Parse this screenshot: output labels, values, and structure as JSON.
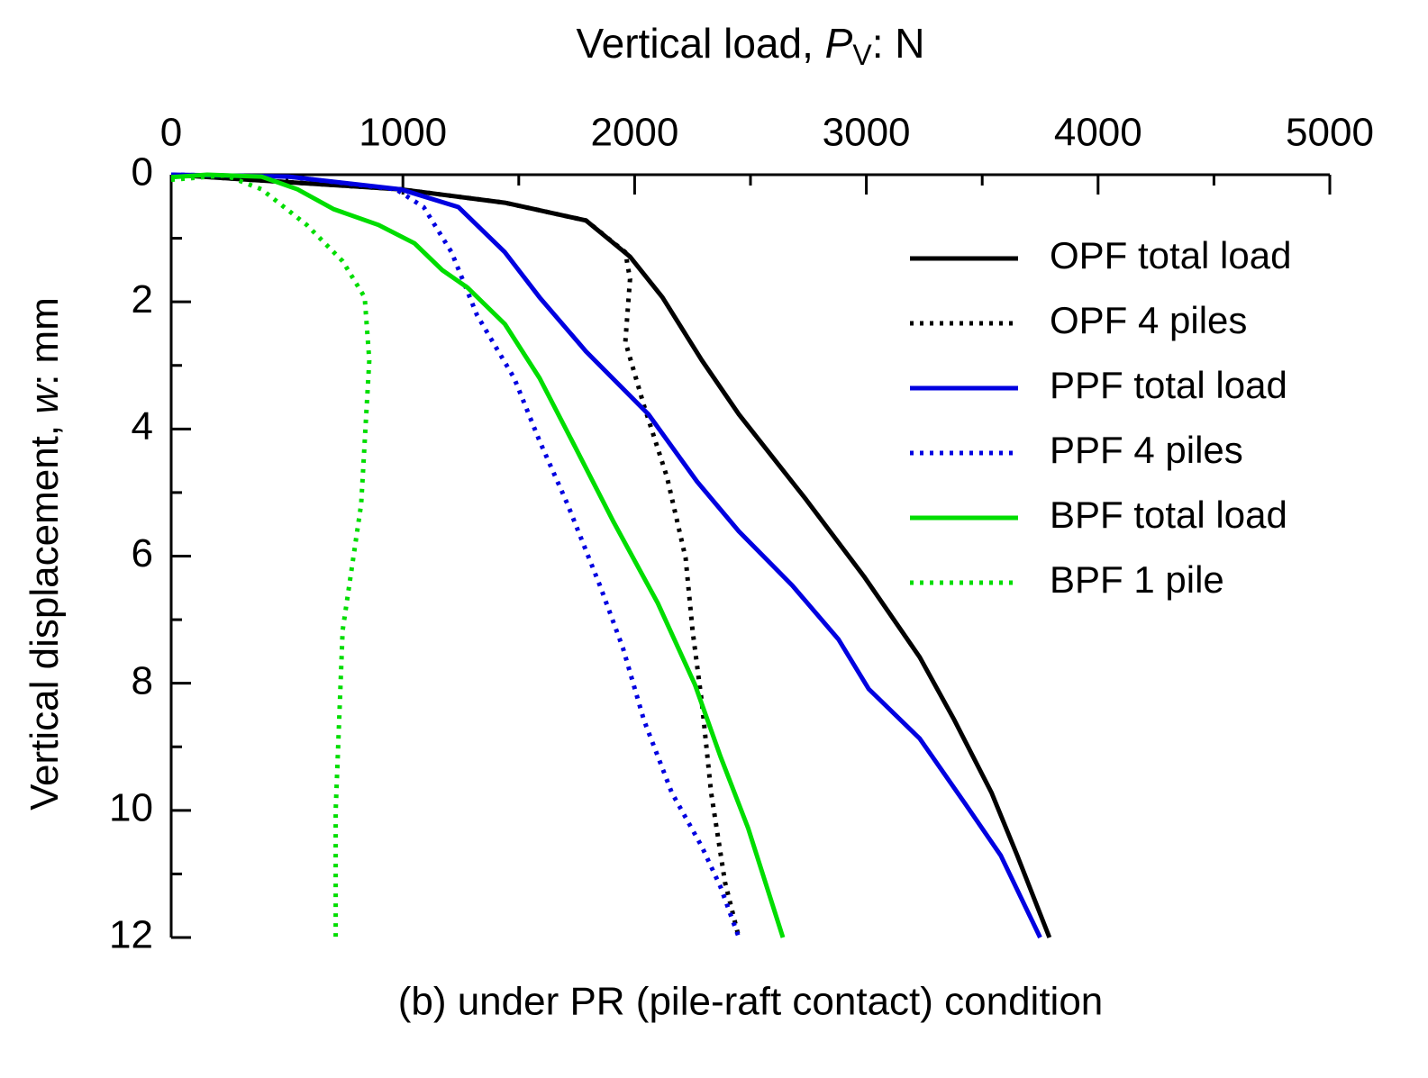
{
  "chart_data": {
    "type": "line",
    "x_label": [
      "Vertical load, ",
      "P",
      "V",
      ": N"
    ],
    "y_label": [
      "Vertical displacement, ",
      "w",
      ": mm"
    ],
    "caption": "(b) under PR (pile-raft contact) condition",
    "x_axis_position": "top",
    "xlim": [
      0,
      5000
    ],
    "xticks": [
      0,
      1000,
      2000,
      3000,
      4000,
      5000
    ],
    "xminorticks": [
      500,
      1500,
      2500,
      3500,
      4500
    ],
    "ylim": [
      12,
      0
    ],
    "yticks": [
      0,
      2,
      4,
      6,
      8,
      10,
      12
    ],
    "yminorticks": [
      1,
      3,
      5,
      7,
      9,
      11
    ],
    "legend": "top-right",
    "series": [
      {
        "name": "OPF total load",
        "color": "#000000",
        "style": "solid",
        "x": [
          0,
          990,
          1440,
          1790,
          1980,
          2120,
          2290,
          2450,
          2740,
          2990,
          3230,
          3380,
          3540,
          3650,
          3790
        ],
        "values": [
          0,
          0.23,
          0.44,
          0.72,
          1.29,
          1.93,
          2.92,
          3.77,
          5.11,
          6.32,
          7.59,
          8.58,
          9.72,
          10.7,
          12
        ]
      },
      {
        "name": "OPF 4 piles",
        "color": "#000000",
        "style": "dotted",
        "x": [
          0,
          990,
          1440,
          1790,
          1960,
          1980,
          1960,
          2040,
          2140,
          2220,
          2250,
          2290,
          2330,
          2390,
          2450
        ],
        "values": [
          0,
          0.23,
          0.44,
          0.72,
          1.22,
          1.64,
          2.63,
          3.63,
          4.76,
          6.03,
          7.17,
          8.3,
          9.72,
          11.13,
          12
        ]
      },
      {
        "name": "PPF total load",
        "color": "#0000e0",
        "style": "solid",
        "x": [
          0,
          505,
          990,
          1240,
          1440,
          1590,
          1790,
          2060,
          2270,
          2450,
          2680,
          2880,
          3010,
          3230,
          3420,
          3580,
          3750
        ],
        "values": [
          0,
          0.03,
          0.23,
          0.51,
          1.22,
          1.93,
          2.78,
          3.77,
          4.83,
          5.61,
          6.46,
          7.31,
          8.09,
          8.87,
          9.86,
          10.71,
          12
        ]
      },
      {
        "name": "PPF 4 piles",
        "color": "#0000e0",
        "style": "dotted",
        "x": [
          0,
          505,
          970,
          1090,
          1210,
          1320,
          1480,
          1590,
          1710,
          1850,
          1950,
          2040,
          2160,
          2290,
          2370,
          2450
        ],
        "values": [
          0,
          0.03,
          0.23,
          0.51,
          1.22,
          2.21,
          3.2,
          4.19,
          5.18,
          6.46,
          7.45,
          8.58,
          9.72,
          10.57,
          11.2,
          12
        ]
      },
      {
        "name": "BPF total load",
        "color": "#00dd00",
        "style": "solid",
        "x": [
          0,
          155,
          390,
          545,
          700,
          895,
          1050,
          1170,
          1280,
          1440,
          1590,
          1730,
          1910,
          2100,
          2260,
          2370,
          2490,
          2640
        ],
        "values": [
          0.04,
          0,
          0.03,
          0.23,
          0.54,
          0.79,
          1.08,
          1.5,
          1.78,
          2.35,
          3.2,
          4.19,
          5.47,
          6.74,
          8.02,
          9.15,
          10.28,
          12
        ]
      },
      {
        "name": "BPF 1 pile",
        "color": "#00dd00",
        "style": "dotted",
        "x": [
          0,
          235,
          390,
          585,
          740,
          835,
          855,
          820,
          740,
          710,
          710
        ],
        "values": [
          0.08,
          0.01,
          0.23,
          0.79,
          1.36,
          1.93,
          2.92,
          5.18,
          7.17,
          10.0,
          12
        ]
      }
    ]
  }
}
